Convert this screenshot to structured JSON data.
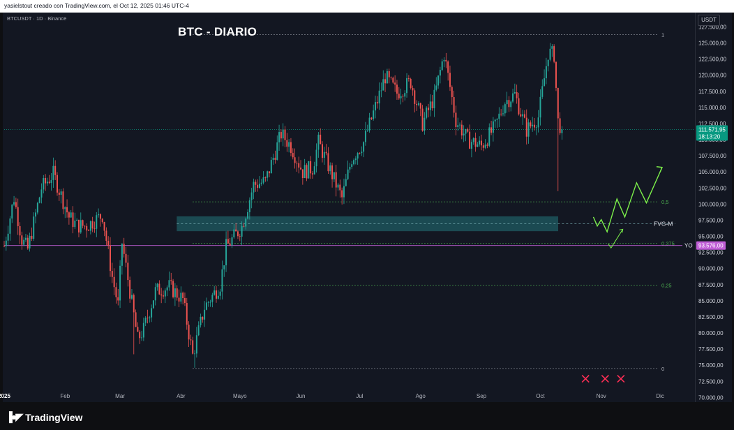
{
  "header": {
    "attribution": "yasielstout creado con TradingView.com, el Oct 12, 2025 01:46 UTC-4"
  },
  "symbol_line": "BTCUSDT · 1D · Binance",
  "currency_button": "USDT",
  "footer": {
    "brand": "TradingView"
  },
  "chart_data": {
    "type": "candlestick",
    "title": "BTC - DIARIO",
    "x_ticks": [
      "2025",
      "Feb",
      "Mar",
      "Abr",
      "Mayo",
      "Jun",
      "Jul",
      "Ago",
      "Sep",
      "Oct",
      "Nov",
      "Dic"
    ],
    "y_ticks": [
      "127.500,00",
      "125.000,00",
      "122.500,00",
      "120.000,00",
      "117.500,00",
      "115.000,00",
      "112.500,00",
      "110.000,00",
      "107.500,00",
      "105.000,00",
      "102.500,00",
      "100.000,00",
      "97.500,00",
      "95.000,00",
      "92.500,00",
      "90.000,00",
      "87.500,00",
      "85.000,00",
      "82.500,00",
      "80.000,00",
      "77.500,00",
      "75.000,00",
      "72.500,00",
      "70.000,00"
    ],
    "y_range": [
      69500,
      129500
    ],
    "x_range": [
      "2025-01-01",
      "2025-12-18"
    ],
    "current_price": {
      "value": 111571.95,
      "label": "111.571,95",
      "countdown": "18:13:20",
      "color": "#089981"
    },
    "yearly_open": {
      "value": 93576,
      "label": "93.576,00",
      "name": "YO",
      "color": "#c05fd6"
    },
    "fib_levels": [
      {
        "ratio": "1",
        "value": 126300
      },
      {
        "ratio": "0,5",
        "value": 100350
      },
      {
        "ratio": "0,375",
        "value": 93900
      },
      {
        "ratio": "0,25",
        "value": 87400
      },
      {
        "ratio": "0",
        "value": 74500
      }
    ],
    "fvg_zone": {
      "label": "FVG-M",
      "from": 95800,
      "to": 98100,
      "start": "2025-04-01"
    },
    "projection_label_positions": [
      "Oct 28 - Dic 05"
    ],
    "projected_path": [
      {
        "date": "2025-10-28",
        "value": 98000
      },
      {
        "date": "2025-10-30",
        "value": 96600
      },
      {
        "date": "2025-11-01",
        "value": 97600
      },
      {
        "date": "2025-11-04",
        "value": 95700
      },
      {
        "date": "2025-11-09",
        "value": 100800
      },
      {
        "date": "2025-11-13",
        "value": 98000
      },
      {
        "date": "2025-11-19",
        "value": 103300
      },
      {
        "date": "2025-11-24",
        "value": 100200
      },
      {
        "date": "2025-12-02",
        "value": 105700
      }
    ],
    "projected_path_alt": [
      {
        "date": "2025-11-06",
        "value": 93200
      },
      {
        "date": "2025-11-12",
        "value": 96100
      }
    ],
    "x_marks": [
      "2025-10-24",
      "2025-11-03",
      "2025-11-11"
    ],
    "x_marks_value": 72900,
    "colors": {
      "up": "#26a69a",
      "down": "#ef5350",
      "fib": "#4caf50",
      "projection": "#7cf04a",
      "fvg": "#1f5c63",
      "cross": "#ff2e55"
    },
    "candles_anchor_closes": [
      {
        "date": "2025-01-01",
        "value": 93500
      },
      {
        "date": "2025-01-06",
        "value": 101000
      },
      {
        "date": "2025-01-10",
        "value": 94500
      },
      {
        "date": "2025-01-13",
        "value": 93000
      },
      {
        "date": "2025-01-20",
        "value": 102500
      },
      {
        "date": "2025-01-26",
        "value": 104700
      },
      {
        "date": "2025-02-03",
        "value": 98000
      },
      {
        "date": "2025-02-07",
        "value": 96700
      },
      {
        "date": "2025-02-12",
        "value": 96600
      },
      {
        "date": "2025-02-20",
        "value": 98300
      },
      {
        "date": "2025-02-25",
        "value": 88700
      },
      {
        "date": "2025-02-28",
        "value": 84300
      },
      {
        "date": "2025-03-02",
        "value": 94000
      },
      {
        "date": "2025-03-10",
        "value": 79000
      },
      {
        "date": "2025-03-13",
        "value": 80500
      },
      {
        "date": "2025-03-19",
        "value": 86500
      },
      {
        "date": "2025-03-26",
        "value": 87200
      },
      {
        "date": "2025-04-02",
        "value": 85200
      },
      {
        "date": "2025-04-07",
        "value": 76500
      },
      {
        "date": "2025-04-13",
        "value": 84000
      },
      {
        "date": "2025-04-21",
        "value": 87500
      },
      {
        "date": "2025-04-24",
        "value": 93300
      },
      {
        "date": "2025-05-02",
        "value": 96500
      },
      {
        "date": "2025-05-08",
        "value": 103000
      },
      {
        "date": "2025-05-14",
        "value": 103500
      },
      {
        "date": "2025-05-22",
        "value": 110900
      },
      {
        "date": "2025-05-27",
        "value": 109000
      },
      {
        "date": "2025-06-02",
        "value": 105000
      },
      {
        "date": "2025-06-07",
        "value": 105600
      },
      {
        "date": "2025-06-10",
        "value": 109600
      },
      {
        "date": "2025-06-17",
        "value": 104500
      },
      {
        "date": "2025-06-22",
        "value": 100900
      },
      {
        "date": "2025-06-27",
        "value": 107100
      },
      {
        "date": "2025-07-03",
        "value": 109600
      },
      {
        "date": "2025-07-10",
        "value": 116000
      },
      {
        "date": "2025-07-14",
        "value": 119800
      },
      {
        "date": "2025-07-20",
        "value": 117200
      },
      {
        "date": "2025-07-27",
        "value": 119000
      },
      {
        "date": "2025-08-02",
        "value": 112500
      },
      {
        "date": "2025-08-08",
        "value": 116600
      },
      {
        "date": "2025-08-13",
        "value": 123300
      },
      {
        "date": "2025-08-19",
        "value": 113000
      },
      {
        "date": "2025-08-25",
        "value": 110000
      },
      {
        "date": "2025-09-01",
        "value": 109000
      },
      {
        "date": "2025-09-08",
        "value": 112000
      },
      {
        "date": "2025-09-13",
        "value": 115900
      },
      {
        "date": "2025-09-18",
        "value": 117000
      },
      {
        "date": "2025-09-24",
        "value": 111500
      },
      {
        "date": "2025-09-30",
        "value": 113500
      },
      {
        "date": "2025-10-05",
        "value": 123500
      },
      {
        "date": "2025-10-08",
        "value": 123200
      },
      {
        "date": "2025-10-10",
        "value": 112800
      },
      {
        "date": "2025-10-12",
        "value": 111570
      }
    ]
  }
}
